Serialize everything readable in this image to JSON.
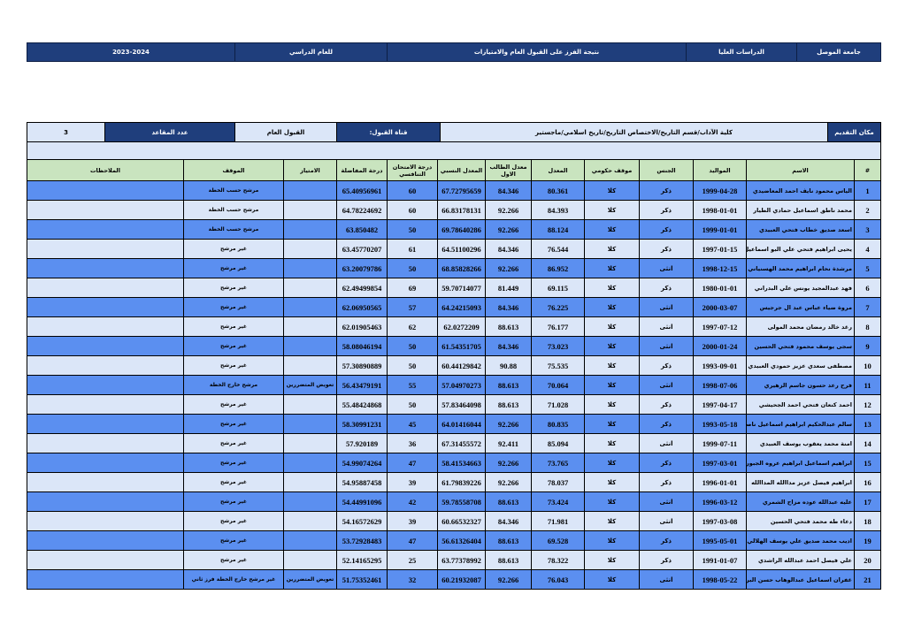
{
  "header": {
    "cells": [
      "جامعة الموصل",
      "الدراسات العليا",
      "نتيجة الفرز على القبول العام والامتيازات",
      "للعام الدراسي",
      "2023-2024"
    ]
  },
  "info": {
    "cells": [
      "مكان التقديم",
      "كلية الآداب/قسم التاريخ/الاختصاص  التاريخ/تاريخ اسلامي/ماجستير",
      "قناة القبول:",
      "القبول العام",
      "عدد المقاعد",
      "3"
    ]
  },
  "table": {
    "columns": [
      "#",
      "الاسم",
      "المواليد",
      "الجنس",
      "موقف حكومي",
      "المعدل",
      "معدل الطالب الاول",
      "المعدل النسبي",
      "درجة الامتحان التنافسي",
      "درجة المفاضلة",
      "الامتياز",
      "الموقف",
      "الملاحظات"
    ],
    "rows": [
      [
        "1",
        "الياس محمود نايف احمد المعاضيدي",
        "1999-04-28",
        "ذكر",
        "كلا",
        "80.361",
        "84.346",
        "67.72795659",
        "60",
        "65.40956961",
        "",
        "مرشح حسب الخطة",
        ""
      ],
      [
        "2",
        "محمد ناطق اسماعيل حمادي الطيار",
        "1998-01-01",
        "ذكر",
        "كلا",
        "84.393",
        "92.266",
        "66.83178131",
        "60",
        "64.78224692",
        "",
        "مرشح حسب الخطة",
        ""
      ],
      [
        "3",
        "اسعد صديق خطاب فتحي العبيدي",
        "1999-01-01",
        "ذكر",
        "كلا",
        "88.124",
        "92.266",
        "69.78640286",
        "50",
        "63.850482",
        "",
        "مرشح حسب الخطة",
        ""
      ],
      [
        "4",
        "يحيى ابراهيم فتحي علي البو اسماعيل",
        "1997-01-15",
        "ذكر",
        "كلا",
        "76.544",
        "84.346",
        "64.51100296",
        "61",
        "63.45770207",
        "",
        "غير مرشح",
        ""
      ],
      [
        "5",
        "مرشدة نحام ابراهيم محمد الهسنياني",
        "1998-12-15",
        "انثى",
        "كلا",
        "86.952",
        "92.266",
        "68.85828266",
        "50",
        "63.20079786",
        "",
        "غير مرشح",
        ""
      ],
      [
        "6",
        "فهد عبدالمجيد يونس علي البدراني",
        "1980-01-01",
        "ذكر",
        "كلا",
        "69.115",
        "81.449",
        "59.70714077",
        "69",
        "62.49499854",
        "",
        "غير مرشح",
        ""
      ],
      [
        "7",
        "مروة ضياء عباس عبد ال جرجيس",
        "2000-03-07",
        "انثى",
        "كلا",
        "76.225",
        "84.346",
        "64.24215093",
        "57",
        "62.06950565",
        "",
        "غير مرشح",
        ""
      ],
      [
        "8",
        "رغد خالد رمضان محمد المولى",
        "1997-07-12",
        "انثى",
        "كلا",
        "76.177",
        "88.613",
        "62.0272209",
        "62",
        "62.01905463",
        "",
        "غير مرشح",
        ""
      ],
      [
        "9",
        "سجى يوسف محمود فتحي الحسين",
        "2000-01-24",
        "انثى",
        "كلا",
        "73.023",
        "84.346",
        "61.54351705",
        "50",
        "58.08046194",
        "",
        "غير مرشح",
        ""
      ],
      [
        "10",
        "مصطفى سعدي عزيز حمودي العبيدي",
        "1993-09-01",
        "ذكر",
        "كلا",
        "75.535",
        "90.88",
        "60.44129842",
        "50",
        "57.30890889",
        "",
        "غير مرشح",
        ""
      ],
      [
        "11",
        "فرح رعد حسون جاسم الزهيري",
        "1998-07-06",
        "انثى",
        "كلا",
        "70.064",
        "88.613",
        "57.04970273",
        "55",
        "56.43479191",
        "تعويض المتضررين",
        "مرشح خارج الخطة",
        ""
      ],
      [
        "12",
        "احمد كنعان فتحي احمد الجحيشي",
        "1997-04-17",
        "ذكر",
        "كلا",
        "71.028",
        "88.613",
        "57.83464098",
        "50",
        "55.48424868",
        "",
        "غير مرشح",
        ""
      ],
      [
        "13",
        "سالم عبدالحكيم ابراهيم اسماعيل ناصر",
        "1993-05-18",
        "ذكر",
        "كلا",
        "80.835",
        "92.266",
        "64.01416044",
        "45",
        "58.30991231",
        "",
        "غير مرشح",
        ""
      ],
      [
        "14",
        "امنة محمد يعقوب يوسف العبيدي",
        "1999-07-11",
        "انثى",
        "كلا",
        "85.094",
        "92.411",
        "67.31455572",
        "36",
        "57.920189",
        "",
        "غير مرشح",
        ""
      ],
      [
        "15",
        "ابراهيم اسماعيل ابراهيم عروه الجبوري",
        "1997-03-01",
        "ذكر",
        "كلا",
        "73.765",
        "92.266",
        "58.41534663",
        "47",
        "54.99074264",
        "",
        "غير مرشح",
        ""
      ],
      [
        "16",
        "ابراهيم فيصل عزيز مداالله المداالله",
        "1996-01-01",
        "ذكر",
        "كلا",
        "78.037",
        "92.266",
        "61.79839226",
        "39",
        "54.95887458",
        "",
        "غير مرشح",
        ""
      ],
      [
        "17",
        "عليه عبدالله عوده مزاح الشمري",
        "1996-03-12",
        "انثى",
        "كلا",
        "73.424",
        "88.613",
        "59.78558708",
        "42",
        "54.44991096",
        "",
        "غير مرشح",
        ""
      ],
      [
        "18",
        "دعاء طه محمد فتحي الحسين",
        "1997-03-08",
        "انثى",
        "كلا",
        "71.981",
        "84.346",
        "60.66532327",
        "39",
        "54.16572629",
        "",
        "غير مرشح",
        ""
      ],
      [
        "19",
        "اديب محمد صديق علي يوسف الهلالي",
        "1995-05-01",
        "ذكر",
        "كلا",
        "69.528",
        "88.613",
        "56.61326404",
        "47",
        "53.72928483",
        "",
        "غير مرشح",
        ""
      ],
      [
        "20",
        "علي فيصل احمد عبدالله الراشدي",
        "1991-01-07",
        "ذكر",
        "كلا",
        "78.322",
        "88.613",
        "63.77378992",
        "25",
        "52.14165295",
        "",
        "غير مرشح",
        ""
      ],
      [
        "21",
        "غفران اسماعيل عبدالوهاب حسن البرغوث",
        "1998-05-22",
        "انثى",
        "كلا",
        "76.043",
        "92.266",
        "60.21932087",
        "32",
        "51.75352461",
        "تعويض المتضررين",
        "غير مرشح خارج الخطة فرز ثاني",
        ""
      ]
    ]
  }
}
